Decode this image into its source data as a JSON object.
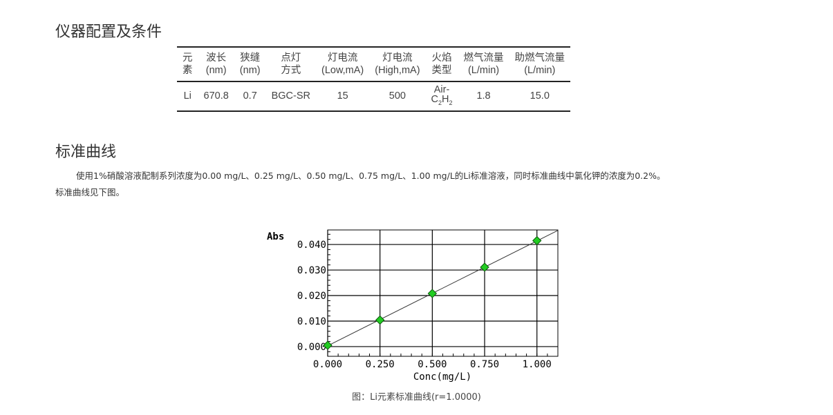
{
  "section1": {
    "title": "仪器配置及条件"
  },
  "table": {
    "headers": [
      [
        "元",
        "素"
      ],
      [
        "波长",
        "(nm)"
      ],
      [
        "狭缝",
        "(nm)"
      ],
      [
        "点灯",
        "方式"
      ],
      [
        "灯电流",
        "(Low,mA)"
      ],
      [
        "灯电流",
        "(High,mA)"
      ],
      [
        "火焰",
        "类型"
      ],
      [
        "燃气流量",
        "(L/min)"
      ],
      [
        "助燃气流量",
        "(L/min)"
      ]
    ],
    "row": [
      "Li",
      "670.8",
      "0.7",
      "BGC-SR",
      "15",
      "500",
      "Air-C2H2",
      "1.8",
      "15.0"
    ]
  },
  "section2": {
    "title": "标准曲线",
    "para1": "使用1%硝酸溶液配制系列浓度为0.00 mg/L、0.25 mg/L、0.50 mg/L、0.75 mg/L、1.00 mg/L的Li标准溶液，同时标准曲线中氯化钾的浓度为0.2%。",
    "para2": "标准曲线见下图。"
  },
  "chart_data": {
    "type": "scatter",
    "xlabel": "Conc(mg/L)",
    "ylabel": "Abs",
    "xlim": [
      0,
      1.1
    ],
    "ylim": [
      -0.0038,
      0.0457
    ],
    "xticks": [
      "0.000",
      "0.250",
      "0.500",
      "0.750",
      "1.000"
    ],
    "yticks": [
      "0.000",
      "0.010",
      "0.020",
      "0.030",
      "0.040"
    ],
    "x": [
      0,
      0.25,
      0.5,
      0.75,
      1.0
    ],
    "y": [
      0.0005,
      0.0104,
      0.0208,
      0.0311,
      0.0415
    ],
    "fit_line": true,
    "grid": true,
    "marker_color": "#22cc22",
    "caption": "图：Li元素标准曲线(r=1.0000)"
  }
}
